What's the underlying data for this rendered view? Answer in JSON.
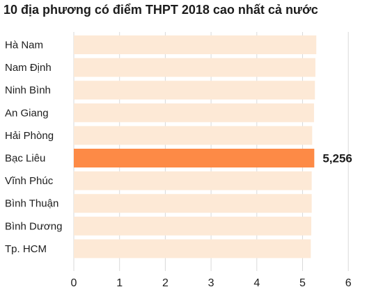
{
  "chart_data": {
    "type": "bar",
    "orientation": "horizontal",
    "title": "10 địa phương có điểm THPT 2018 cao nhất cả nước",
    "categories": [
      "Hà Nam",
      "Nam Định",
      "Ninh Bình",
      "An Giang",
      "Hải Phòng",
      "Bạc Liêu",
      "Vĩnh Phúc",
      "Bình Thuận",
      "Bình Dương",
      "Tp. HCM"
    ],
    "values": [
      5.3,
      5.28,
      5.27,
      5.25,
      5.21,
      5.256,
      5.2,
      5.2,
      5.19,
      5.18
    ],
    "highlight_index": 5,
    "highlight_label": "5,256",
    "xlim": [
      0,
      6
    ],
    "xticks": [
      "0",
      "1",
      "2",
      "3",
      "4",
      "5",
      "6"
    ],
    "grid": true,
    "colors": {
      "bar": "#fde9d6",
      "highlight": "#fd8a46",
      "grid": "#d9d9d9",
      "text": "#1c1c1c"
    }
  }
}
